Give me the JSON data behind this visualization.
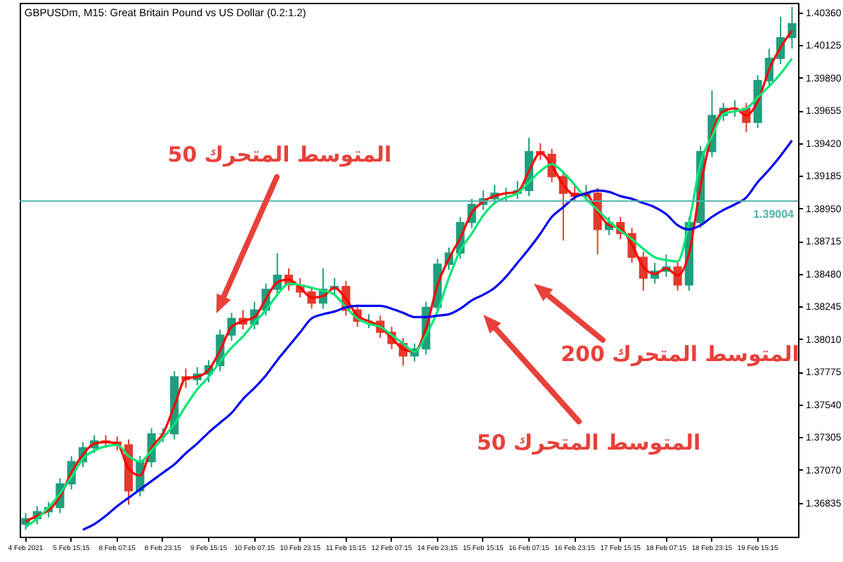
{
  "chart_data": {
    "type": "candlestick",
    "title": "GBPUSDm, M15: Great Britain Pound vs US Dollar (0.2:1.2)",
    "categories": [
      "4 Feb 2021",
      null,
      null,
      null,
      "5 Feb 15:15",
      null,
      null,
      null,
      "8 Feb 07:15",
      null,
      null,
      null,
      "8 Feb 23:15",
      null,
      null,
      null,
      "9 Feb 15:15",
      null,
      null,
      null,
      "10 Feb 07:15",
      null,
      null,
      null,
      "10 Feb 23:15",
      null,
      null,
      null,
      "11 Feb 15:15",
      null,
      null,
      null,
      "12 Feb 07:15",
      null,
      null,
      null,
      "14 Feb 23:15",
      null,
      null,
      null,
      "15 Feb 15:15",
      null,
      null,
      null,
      "16 Feb 07:15",
      null,
      null,
      null,
      "16 Feb 23:15",
      null,
      null,
      null,
      "17 Feb 15:15",
      null,
      null,
      null,
      "18 Feb 07:15",
      null,
      null,
      null,
      "18 Feb 23:15",
      null,
      null,
      null,
      "19 Feb 15:15",
      null,
      null,
      null
    ],
    "ohlc": [
      [
        1.3668,
        1.3676,
        1.3664,
        1.3672
      ],
      [
        1.3672,
        1.3681,
        1.3668,
        1.3677
      ],
      [
        1.3677,
        1.3684,
        1.3673,
        1.368
      ],
      [
        1.368,
        1.3701,
        1.3676,
        1.3697
      ],
      [
        1.3697,
        1.3717,
        1.3693,
        1.3713
      ],
      [
        1.3713,
        1.3727,
        1.3709,
        1.3723
      ],
      [
        1.3723,
        1.3732,
        1.3719,
        1.3728
      ],
      [
        1.3728,
        1.3732,
        1.3723,
        1.3727
      ],
      [
        1.3727,
        1.3731,
        1.3721,
        1.3725
      ],
      [
        1.3725,
        1.3729,
        1.3682,
        1.3692
      ],
      [
        1.3692,
        1.3717,
        1.3688,
        1.3713
      ],
      [
        1.3713,
        1.3737,
        1.3709,
        1.3733
      ],
      [
        1.3733,
        1.3737,
        1.3727,
        1.3733
      ],
      [
        1.3733,
        1.3778,
        1.3729,
        1.3774
      ],
      [
        1.3774,
        1.378,
        1.3766,
        1.3772
      ],
      [
        1.3772,
        1.3781,
        1.3768,
        1.3776
      ],
      [
        1.3776,
        1.3786,
        1.377,
        1.3782
      ],
      [
        1.3782,
        1.3808,
        1.3778,
        1.3804
      ],
      [
        1.3804,
        1.382,
        1.38,
        1.3816
      ],
      [
        1.3816,
        1.3822,
        1.3808,
        1.3812
      ],
      [
        1.3812,
        1.3828,
        1.3808,
        1.3822
      ],
      [
        1.3822,
        1.3841,
        1.3818,
        1.3837
      ],
      [
        1.3837,
        1.3863,
        1.3833,
        1.3847
      ],
      [
        1.3847,
        1.3852,
        1.3836,
        1.384
      ],
      [
        1.384,
        1.3845,
        1.3831,
        1.3835
      ],
      [
        1.3835,
        1.3839,
        1.3823,
        1.3827
      ],
      [
        1.3827,
        1.3852,
        1.3823,
        1.3837
      ],
      [
        1.3837,
        1.3845,
        1.3833,
        1.3839
      ],
      [
        1.3839,
        1.3843,
        1.3818,
        1.3822
      ],
      [
        1.3822,
        1.3826,
        1.381,
        1.3814
      ],
      [
        1.3814,
        1.3819,
        1.3809,
        1.3814
      ],
      [
        1.3814,
        1.3818,
        1.3802,
        1.3806
      ],
      [
        1.3806,
        1.381,
        1.3794,
        1.3798
      ],
      [
        1.3798,
        1.3802,
        1.3782,
        1.3789
      ],
      [
        1.3789,
        1.3798,
        1.3785,
        1.3794
      ],
      [
        1.3794,
        1.3828,
        1.379,
        1.3824
      ],
      [
        1.3824,
        1.3859,
        1.382,
        1.3855
      ],
      [
        1.3855,
        1.3867,
        1.3851,
        1.3863
      ],
      [
        1.3863,
        1.3889,
        1.3859,
        1.3885
      ],
      [
        1.3885,
        1.3902,
        1.3881,
        1.3898
      ],
      [
        1.3898,
        1.3908,
        1.3894,
        1.3902
      ],
      [
        1.3902,
        1.3912,
        1.3898,
        1.3906
      ],
      [
        1.3906,
        1.391,
        1.39,
        1.3906
      ],
      [
        1.3906,
        1.3915,
        1.3902,
        1.3908
      ],
      [
        1.3908,
        1.3946,
        1.3904,
        1.3936
      ],
      [
        1.3936,
        1.3942,
        1.393,
        1.3934
      ],
      [
        1.3934,
        1.3938,
        1.3914,
        1.3918
      ],
      [
        1.3918,
        1.3922,
        1.3872,
        1.3906
      ],
      [
        1.3906,
        1.3912,
        1.39,
        1.3904
      ],
      [
        1.3904,
        1.3912,
        1.39,
        1.3906
      ],
      [
        1.3906,
        1.391,
        1.3862,
        1.388
      ],
      [
        1.388,
        1.3889,
        1.3876,
        1.3885
      ],
      [
        1.3885,
        1.3889,
        1.3873,
        1.3877
      ],
      [
        1.3877,
        1.3881,
        1.3856,
        1.386
      ],
      [
        1.386,
        1.3864,
        1.3836,
        1.3845
      ],
      [
        1.3845,
        1.3856,
        1.3841,
        1.385
      ],
      [
        1.385,
        1.3862,
        1.3846,
        1.3853
      ],
      [
        1.3853,
        1.3857,
        1.3836,
        1.384
      ],
      [
        1.384,
        1.3889,
        1.3836,
        1.3885
      ],
      [
        1.3885,
        1.394,
        1.3881,
        1.3936
      ],
      [
        1.3936,
        1.398,
        1.3932,
        1.3962
      ],
      [
        1.3962,
        1.3971,
        1.3958,
        1.3967
      ],
      [
        1.3967,
        1.3973,
        1.3961,
        1.3967
      ],
      [
        1.3967,
        1.3971,
        1.395,
        1.3957
      ],
      [
        1.3957,
        1.3991,
        1.3953,
        1.3987
      ],
      [
        1.3987,
        1.401,
        1.3983,
        1.4003
      ],
      [
        1.4003,
        1.4033,
        1.3999,
        1.4018
      ],
      [
        1.4018,
        1.404,
        1.401,
        1.4028
      ]
    ],
    "colors": [
      "#1f9e7e",
      "#1f9e7e",
      "#1f9e7e",
      "#1f9e7e",
      "#1f9e7e",
      "#1f9e7e",
      "#1f9e7e",
      "#e23a2c",
      "#e23a2c",
      "#e23a2c",
      "#1f9e7e",
      "#1f9e7e",
      "#1f9e7e",
      "#1f9e7e",
      "#e23a2c",
      "#1f9e7e",
      "#1f9e7e",
      "#1f9e7e",
      "#1f9e7e",
      "#e23a2c",
      "#1f9e7e",
      "#1f9e7e",
      "#1f9e7e",
      "#e23a2c",
      "#e23a2c",
      "#e23a2c",
      "#1f9e7e",
      "#1f9e7e",
      "#e23a2c",
      "#e23a2c",
      "#1f9e7e",
      "#e23a2c",
      "#e23a2c",
      "#e23a2c",
      "#1f9e7e",
      "#1f9e7e",
      "#1f9e7e",
      "#1f9e7e",
      "#1f9e7e",
      "#1f9e7e",
      "#1f9e7e",
      "#1f9e7e",
      "#1f9e7e",
      "#1f9e7e",
      "#1f9e7e",
      "#e23a2c",
      "#e23a2c",
      "#e23a2c",
      "#e23a2c",
      "#1f9e7e",
      "#e23a2c",
      "#1f9e7e",
      "#e23a2c",
      "#e23a2c",
      "#e23a2c",
      "#1f9e7e",
      "#1f9e7e",
      "#e23a2c",
      "#1f9e7e",
      "#1f9e7e",
      "#1f9e7e",
      "#1f9e7e",
      "#1f9e7e",
      "#e23a2c",
      "#1f9e7e",
      "#1f9e7e",
      "#1f9e7e",
      "#1f9e7e"
    ],
    "series": [
      {
        "type": "line",
        "color": "#ff0000",
        "values": [
          1.367,
          1.3674,
          1.3678,
          1.3688,
          1.3705,
          1.3718,
          1.3726,
          1.3727,
          1.3726,
          1.3708,
          1.3703,
          1.3723,
          1.3733,
          1.3753,
          1.3773,
          1.3774,
          1.3779,
          1.3793,
          1.381,
          1.3814,
          1.3817,
          1.383,
          1.3842,
          1.3844,
          1.3838,
          1.3831,
          1.3832,
          1.3838,
          1.383,
          1.3818,
          1.3814,
          1.381,
          1.3802,
          1.3794,
          1.3792,
          1.3809,
          1.384,
          1.3859,
          1.3874,
          1.3892,
          1.39,
          1.3904,
          1.3906,
          1.3907,
          1.3922,
          1.3935,
          1.3926,
          1.3912,
          1.3905,
          1.3905,
          1.3893,
          1.3883,
          1.3881,
          1.3869,
          1.3853,
          1.3848,
          1.3852,
          1.3847,
          1.3863,
          1.3911,
          1.3949,
          1.3965,
          1.3967,
          1.3962,
          1.3972,
          1.3995,
          1.4011,
          1.4023
        ]
      },
      {
        "type": "line",
        "color": "#00e676",
        "values": [
          1.3666,
          1.3672,
          1.368,
          1.369,
          1.3702,
          1.3715,
          1.3721,
          1.3724,
          1.3725,
          1.3717,
          1.3713,
          1.3721,
          1.373,
          1.374,
          1.3753,
          1.3765,
          1.3774,
          1.3785,
          1.3795,
          1.3803,
          1.3813,
          1.3822,
          1.3833,
          1.3841,
          1.384,
          1.3838,
          1.3836,
          1.3833,
          1.3824,
          1.3816,
          1.3812,
          1.381,
          1.3804,
          1.3798,
          1.3792,
          1.3804,
          1.3821,
          1.3845,
          1.3865,
          1.3877,
          1.389,
          1.3899,
          1.3903,
          1.3906,
          1.3914,
          1.3922,
          1.3927,
          1.3921,
          1.3912,
          1.3902,
          1.3894,
          1.3886,
          1.3879,
          1.3873,
          1.3866,
          1.386,
          1.3858,
          1.3857,
          1.3885,
          1.3928,
          1.3947,
          1.3963,
          1.3965,
          1.3967,
          1.3975,
          1.3983,
          1.3992,
          1.4003
        ]
      },
      {
        "type": "line",
        "color": "#0000ee",
        "values": [
          null,
          null,
          null,
          null,
          null,
          1.3664,
          1.3668,
          1.3674,
          1.3681,
          1.3687,
          1.3693,
          1.3699,
          1.3705,
          1.3711,
          1.3719,
          1.3726,
          1.3734,
          1.3741,
          1.3748,
          1.3758,
          1.3766,
          1.3775,
          1.3786,
          1.3796,
          1.3806,
          1.3816,
          1.3819,
          1.3821,
          1.3824,
          1.3825,
          1.3825,
          1.3825,
          1.3823,
          1.382,
          1.3817,
          1.3817,
          1.3818,
          1.3819,
          1.3823,
          1.3829,
          1.3833,
          1.3838,
          1.3846,
          1.3856,
          1.3866,
          1.3877,
          1.3889,
          1.3896,
          1.3903,
          1.3906,
          1.3908,
          1.3907,
          1.3904,
          1.3902,
          1.3899,
          1.3896,
          1.3891,
          1.3883,
          1.388,
          1.3883,
          1.3889,
          1.3894,
          1.3898,
          1.3903,
          1.3914,
          1.3923,
          1.3933,
          1.3944
        ]
      }
    ],
    "ylim": [
      1.3659,
      1.4043
    ],
    "yticks": [
      {
        "value": 1.36835,
        "label": "1.36835"
      },
      {
        "value": 1.3707,
        "label": "1.37070"
      },
      {
        "value": 1.37305,
        "label": "1.37305"
      },
      {
        "value": 1.3754,
        "label": "1.37540"
      },
      {
        "value": 1.37775,
        "label": "1.37775"
      },
      {
        "value": 1.3801,
        "label": "1.38010"
      },
      {
        "value": 1.38245,
        "label": "1.38245"
      },
      {
        "value": 1.3848,
        "label": "1.38480"
      },
      {
        "value": 1.38715,
        "label": "1.38715"
      },
      {
        "value": 1.3895,
        "label": "1.38950"
      },
      {
        "value": 1.39185,
        "label": "1.39185"
      },
      {
        "value": 1.3942,
        "label": "1.39420"
      },
      {
        "value": 1.39655,
        "label": "1.39655"
      },
      {
        "value": 1.3989,
        "label": "1.39890"
      },
      {
        "value": 1.40125,
        "label": "1.40125"
      },
      {
        "value": 1.4036,
        "label": "1.40360"
      }
    ],
    "ref_lines": [
      {
        "axis": "y",
        "value": 1.39004,
        "label": "1.39004",
        "color": "#4fb3a9"
      }
    ],
    "annotations": [
      "المتوسط المتحرك 50",
      {
        "text": "المتوسط المتحرك 200",
        "y": 1.3841
      },
      "المتوسط المتحرك 50"
    ]
  }
}
